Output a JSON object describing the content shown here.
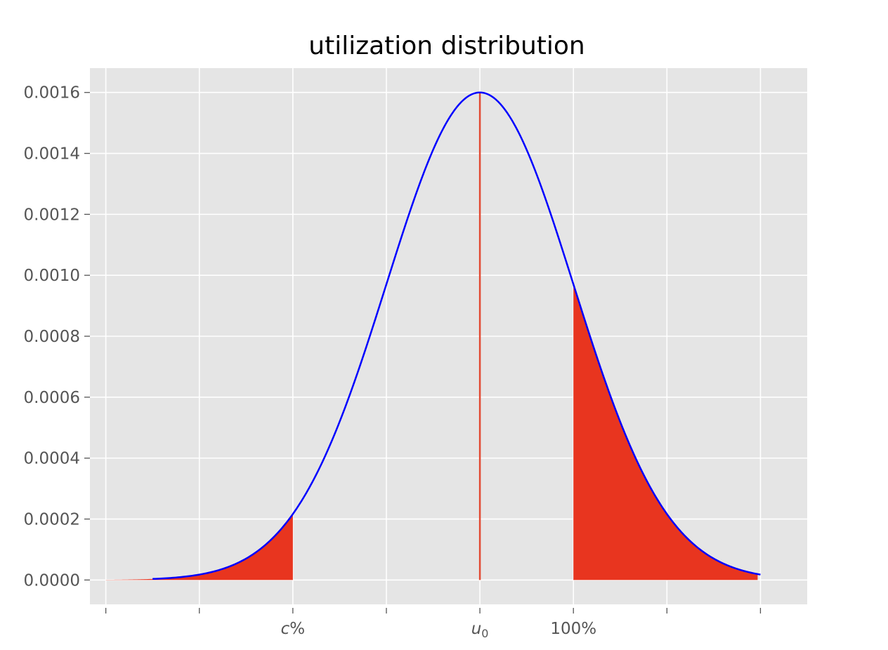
{
  "chart_data": {
    "type": "line",
    "title": "utilization distribution",
    "xlabel": "",
    "ylabel": "",
    "xlim": [
      -4.17,
      3.5
    ],
    "ylim": [
      -8e-05,
      0.00168
    ],
    "grid": true,
    "background_color": "#e5e5e5",
    "grid_color": "#ffffff",
    "curve": {
      "type": "normal_pdf",
      "mean": 0,
      "std": 1,
      "peak": 0.0016,
      "x_range": [
        -3.5,
        3.0
      ],
      "color": "#0000ff",
      "line_width": 2.5
    },
    "x_ticks": [
      {
        "x": -4.0,
        "label": ""
      },
      {
        "x": -3.0,
        "label": ""
      },
      {
        "x": -2.0,
        "label": "c",
        "suffix": "%",
        "italic": true
      },
      {
        "x": -1.0,
        "label": ""
      },
      {
        "x": 0.0,
        "label": "u",
        "subscript": "0",
        "italic": true
      },
      {
        "x": 1.0,
        "label": "100%"
      },
      {
        "x": 2.0,
        "label": ""
      },
      {
        "x": 3.0,
        "label": ""
      }
    ],
    "y_ticks": [
      {
        "y": 0.0,
        "label": "0.0000"
      },
      {
        "y": 0.0002,
        "label": "0.0002"
      },
      {
        "y": 0.0004,
        "label": "0.0004"
      },
      {
        "y": 0.0006,
        "label": "0.0006"
      },
      {
        "y": 0.0008,
        "label": "0.0008"
      },
      {
        "y": 0.001,
        "label": "0.0010"
      },
      {
        "y": 0.0012,
        "label": "0.0012"
      },
      {
        "y": 0.0014,
        "label": "0.0014"
      },
      {
        "y": 0.0016,
        "label": "0.0016"
      }
    ],
    "shaded_regions": [
      {
        "name": "left-tail",
        "x_from": -4.0,
        "x_to": -2.0,
        "color": "#e8351f"
      },
      {
        "name": "right-tail",
        "x_from": 1.0,
        "x_to": 2.97,
        "color": "#e8351f"
      }
    ],
    "vertical_line": {
      "x": 0.0,
      "y_from": 0.0,
      "y_to": 0.0016,
      "color": "#e24a33"
    }
  }
}
